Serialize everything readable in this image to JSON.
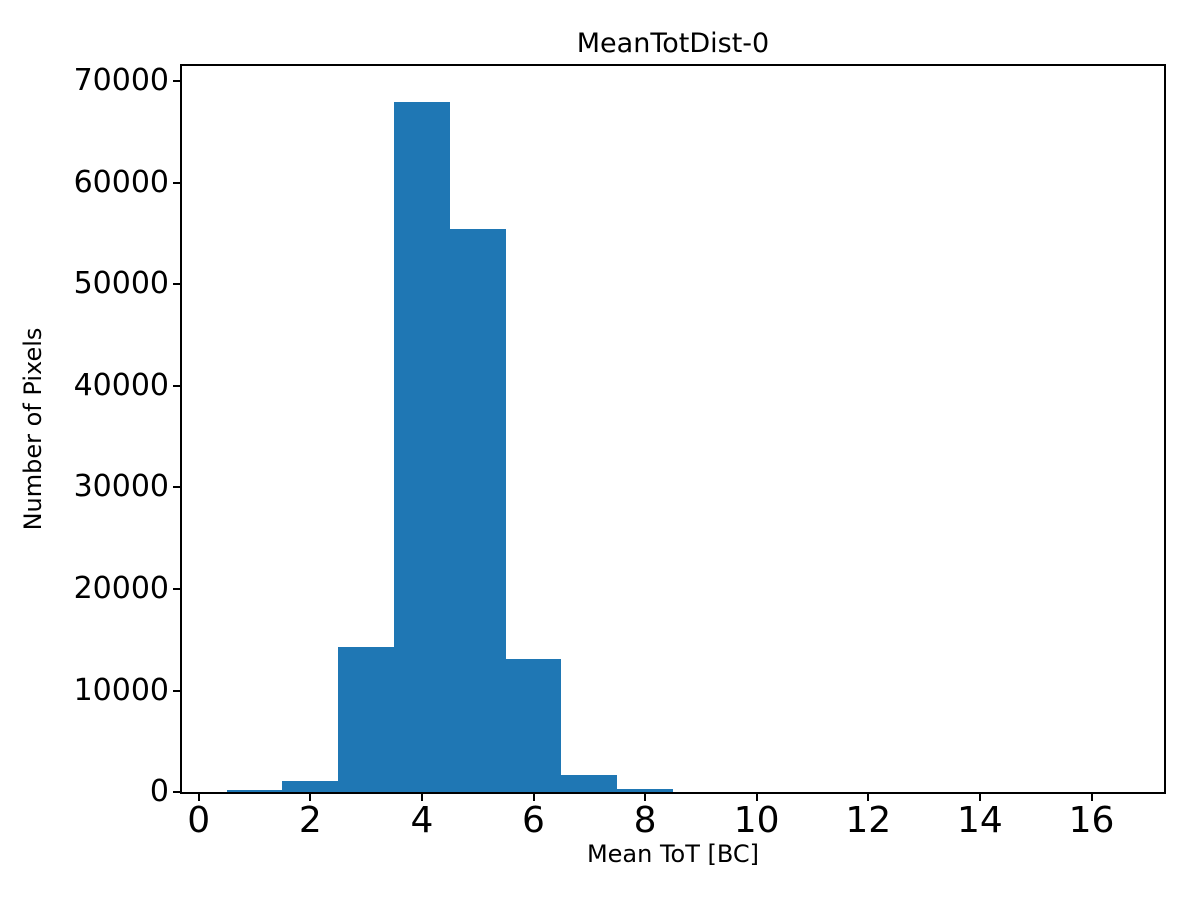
{
  "figure": {
    "title": "MeanTotDist-0",
    "xlabel": "Mean ToT [BC]",
    "ylabel": "Number of Pixels",
    "background_color": "#ffffff",
    "spine_color": "#000000"
  },
  "chart_data": {
    "type": "bar",
    "subtype": "histogram",
    "title": "MeanTotDist-0",
    "xlabel": "Mean ToT [BC]",
    "ylabel": "Number of Pixels",
    "bin_edges": [
      0.5,
      1.5,
      2.5,
      3.5,
      4.5,
      5.5,
      6.5,
      7.5,
      8.5
    ],
    "values": [
      200,
      1100,
      14300,
      67950,
      55500,
      13100,
      1650,
      300
    ],
    "bar_color": "#1f77b4",
    "xlim": [
      -0.3,
      17.3
    ],
    "ylim": [
      0,
      71500
    ],
    "x_ticks": [
      0,
      2,
      4,
      6,
      8,
      10,
      12,
      14,
      16
    ],
    "y_ticks": [
      0,
      10000,
      20000,
      30000,
      40000,
      50000,
      60000,
      70000
    ],
    "x_tick_labels": [
      "0",
      "2",
      "4",
      "6",
      "8",
      "10",
      "12",
      "14",
      "16"
    ],
    "y_tick_labels": [
      "0",
      "10000",
      "20000",
      "30000",
      "40000",
      "50000",
      "60000",
      "70000"
    ],
    "grid": false,
    "legend": null
  }
}
